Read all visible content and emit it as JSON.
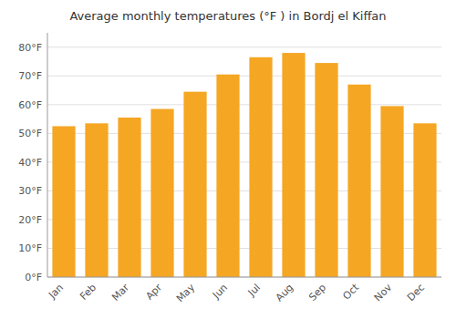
{
  "chart_data": {
    "type": "bar",
    "title": "Average monthly temperatures (°F ) in Bordj el Kiffan",
    "categories": [
      "Jan",
      "Feb",
      "Mar",
      "Apr",
      "May",
      "Jun",
      "Jul",
      "Aug",
      "Sep",
      "Oct",
      "Nov",
      "Dec"
    ],
    "values": [
      52.5,
      53.5,
      55.5,
      58.5,
      64.5,
      70.5,
      76.5,
      78.0,
      74.5,
      67.0,
      59.5,
      53.5
    ],
    "color": "#f5a623",
    "ylim": [
      0,
      85
    ],
    "yticks": [
      {
        "value": 0,
        "label": "0°F"
      },
      {
        "value": 10,
        "label": "10°F"
      },
      {
        "value": 20,
        "label": "20°F"
      },
      {
        "value": 30,
        "label": "30°F"
      },
      {
        "value": 40,
        "label": "40°F"
      },
      {
        "value": 50,
        "label": "50°F"
      },
      {
        "value": 60,
        "label": "60°F"
      },
      {
        "value": 70,
        "label": "70°F"
      },
      {
        "value": 80,
        "label": "80°F"
      }
    ],
    "grid": true
  }
}
